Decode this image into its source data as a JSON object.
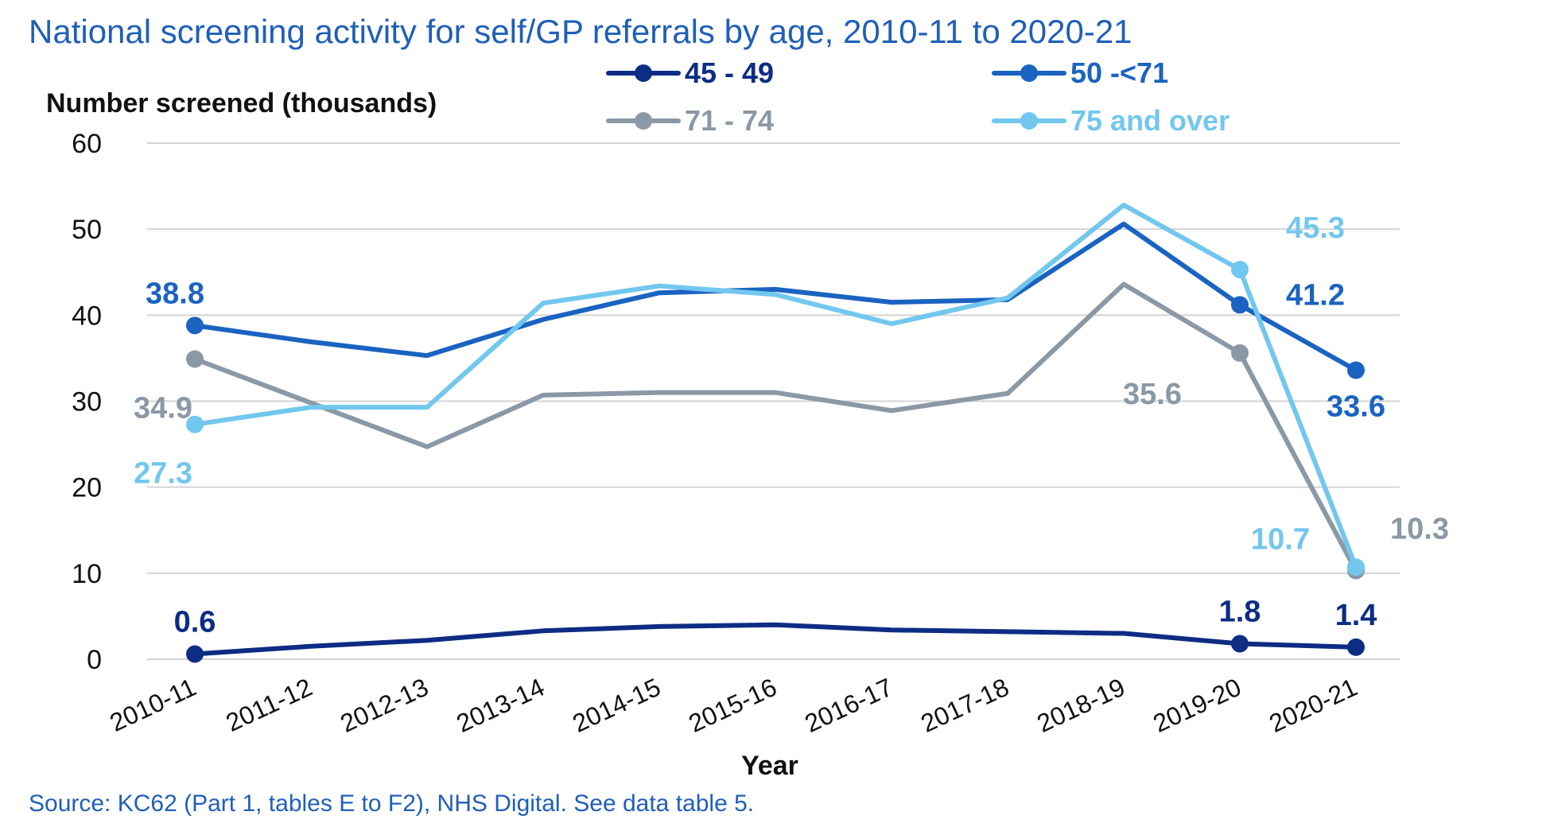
{
  "title": "National screening activity for self/GP referrals by age, 2010-11 to 2020-21",
  "source": "Source: KC62 (Part 1, tables E to F2), NHS Digital. See data table 5.",
  "chart_data": {
    "type": "line",
    "title": "National screening activity for self/GP referrals by age, 2010-11 to 2020-21",
    "ylabel": "Number screened (thousands)",
    "xlabel": "Year",
    "ylim": [
      0,
      60
    ],
    "yticks": [
      "0",
      "10",
      "20",
      "30",
      "40",
      "50",
      "60"
    ],
    "grid": "horizontal",
    "legend_position": "top",
    "categories": [
      "2010-11",
      "2011-12",
      "2012-13",
      "2013-14",
      "2014-15",
      "2015-16",
      "2016-17",
      "2017-18",
      "2018-19",
      "2019-20",
      "2020-21"
    ],
    "series": [
      {
        "name": "45 - 49",
        "color": "#0d2d84",
        "bold": true,
        "values": [
          0.6,
          1.5,
          2.2,
          3.3,
          3.8,
          4.0,
          3.4,
          3.2,
          3.0,
          1.8,
          1.4
        ],
        "labels": [
          {
            "index": 0,
            "text": "0.6"
          },
          {
            "index": 9,
            "text": "1.8"
          },
          {
            "index": 10,
            "text": "1.4"
          }
        ]
      },
      {
        "name": "50 -<71",
        "color": "#1a63c1",
        "bold": true,
        "values": [
          38.8,
          36.9,
          35.3,
          39.5,
          42.6,
          43.0,
          41.5,
          41.8,
          50.6,
          41.2,
          33.6
        ],
        "labels": [
          {
            "index": 0,
            "text": "38.8"
          },
          {
            "index": 9,
            "text": "41.2"
          },
          {
            "index": 10,
            "text": "33.6"
          }
        ]
      },
      {
        "name": "71 - 74",
        "color": "#8b98a5",
        "bold": false,
        "values": [
          34.9,
          29.8,
          24.7,
          30.7,
          31.0,
          31.0,
          28.9,
          30.9,
          43.6,
          35.6,
          10.3
        ],
        "labels": [
          {
            "index": 0,
            "text": "34.9"
          },
          {
            "index": 9,
            "text": "35.6"
          },
          {
            "index": 10,
            "text": "10.3"
          }
        ]
      },
      {
        "name": "75 and over",
        "color": "#72c7ee",
        "bold": true,
        "values": [
          27.3,
          29.3,
          29.3,
          41.4,
          43.4,
          42.4,
          39.0,
          42.0,
          52.8,
          45.3,
          10.7
        ],
        "labels": [
          {
            "index": 0,
            "text": "27.3"
          },
          {
            "index": 9,
            "text": "45.3"
          },
          {
            "index": 10,
            "text": "10.7"
          }
        ]
      }
    ]
  }
}
